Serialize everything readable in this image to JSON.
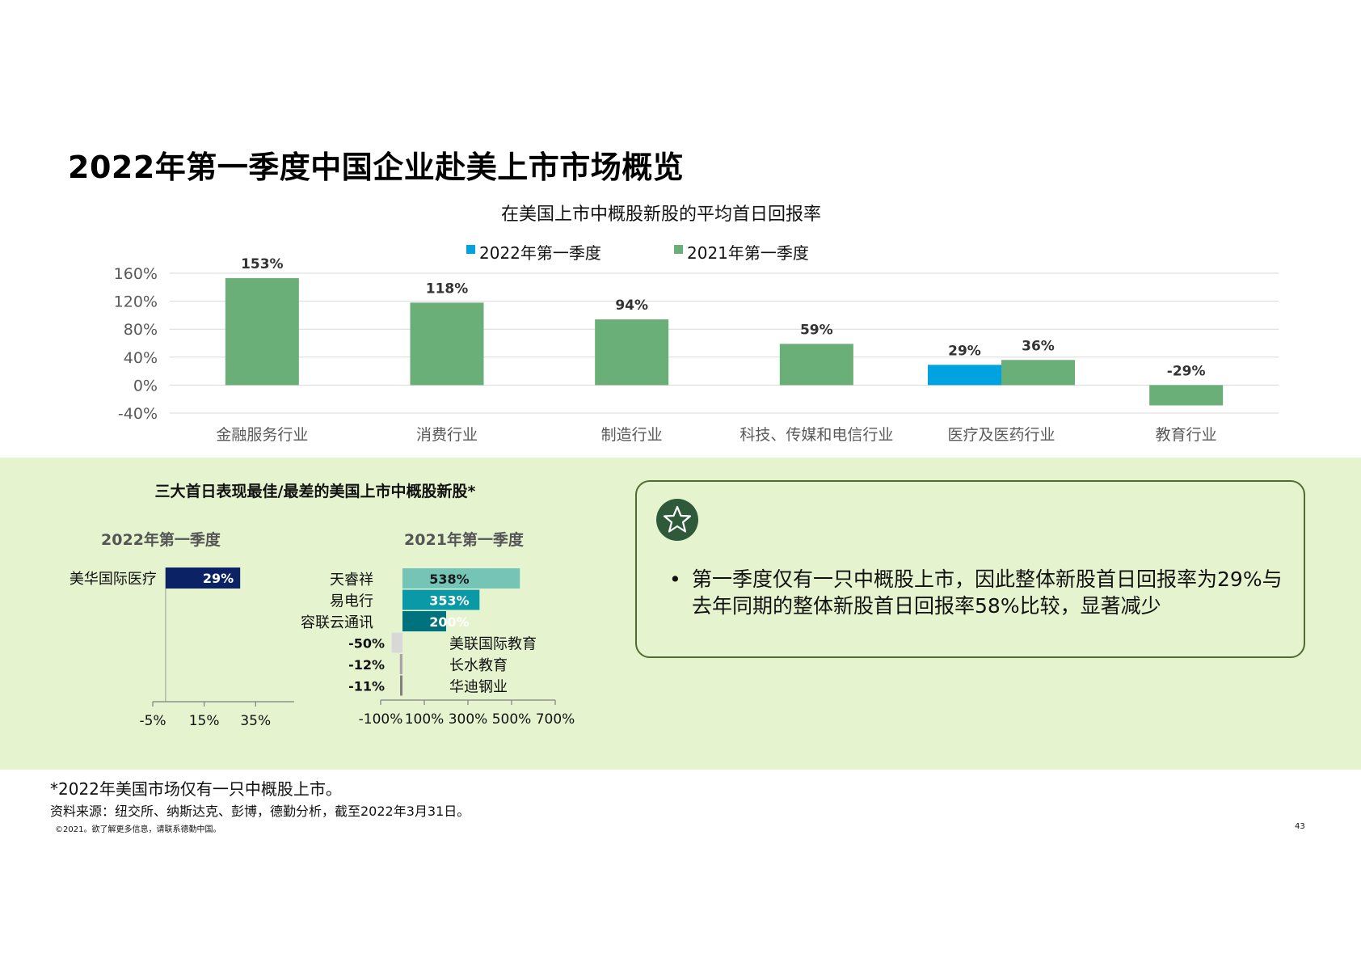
{
  "page": {
    "title": "2022年第一季度中国企业赴美上市市场概览",
    "footnote": "*2022年美国市场仅有一只中概股上市。",
    "source": "资料来源：纽交所、纳斯达克、彭博，德勤分析，截至2022年3月31日。",
    "copyright": "©2021。欲了解更多信息，请联系德勤中国。",
    "page_number": "43"
  },
  "callout": {
    "icon": "star-icon",
    "bullet": "•",
    "text": "第一季度仅有一只中概股上市，因此整体新股首日回报率为29%与去年同期的整体新股首日回报率58%比较，显著减少"
  },
  "colors": {
    "series_2022": "#00a3e0",
    "series_2021": "#6aaf78",
    "band_bg": "#e5f4cf",
    "best_2022": "#0b2265",
    "best_2021": [
      "#74c5b6",
      "#0a9aa7",
      "#00727d"
    ],
    "worst_2021": [
      "#d8d8d8",
      "#a6a6a6",
      "#7f7f7f"
    ]
  },
  "chart_data": [
    {
      "type": "bar",
      "title": "在美国上市中概股新股的平均首日回报率",
      "categories": [
        "金融服务行业",
        "消费行业",
        "制造行业",
        "科技、传媒和电信行业",
        "医疗及医药行业",
        "教育行业"
      ],
      "series": [
        {
          "name": "2022年第一季度",
          "values": [
            null,
            null,
            null,
            null,
            29,
            null
          ],
          "labels": [
            "",
            "",
            "",
            "",
            "29%",
            ""
          ]
        },
        {
          "name": "2021年第一季度",
          "values": [
            153,
            118,
            94,
            59,
            36,
            -29
          ],
          "labels": [
            "153%",
            "118%",
            "94%",
            "59%",
            "36%",
            "-29%"
          ]
        }
      ],
      "y_ticks": [
        -40,
        0,
        40,
        80,
        120,
        160
      ],
      "y_tick_labels": [
        "-40%",
        "0%",
        "40%",
        "80%",
        "120%",
        "160%"
      ],
      "ylim": [
        -40,
        160
      ],
      "grid": true,
      "legend": "top"
    },
    {
      "type": "bar",
      "orientation": "horizontal",
      "title": "三大首日表现最佳/最差的美国上市中概股新股*",
      "subtitle": "2022年第一季度",
      "categories": [
        "美华国际医疗"
      ],
      "values": [
        29
      ],
      "labels": [
        "29%"
      ],
      "x_ticks": [
        -5,
        15,
        35
      ],
      "x_tick_labels": [
        "-5%",
        "15%",
        "35%"
      ],
      "xlim": [
        -5,
        50
      ]
    },
    {
      "type": "bar",
      "orientation": "horizontal",
      "subtitle": "2021年第一季度",
      "categories": [
        "天睿祥",
        "易电行",
        "容联云通讯",
        "美联国际教育",
        "长水教育",
        "华迪钢业"
      ],
      "values": [
        538,
        353,
        200,
        -50,
        -12,
        -11
      ],
      "labels": [
        "538%",
        "353%",
        "200%",
        "-50%",
        "-12%",
        "-11%"
      ],
      "x_ticks": [
        -100,
        100,
        300,
        500,
        700
      ],
      "x_tick_labels": [
        "-100%",
        "100%",
        "300%",
        "500%",
        "700%"
      ],
      "xlim": [
        -100,
        700
      ]
    }
  ]
}
